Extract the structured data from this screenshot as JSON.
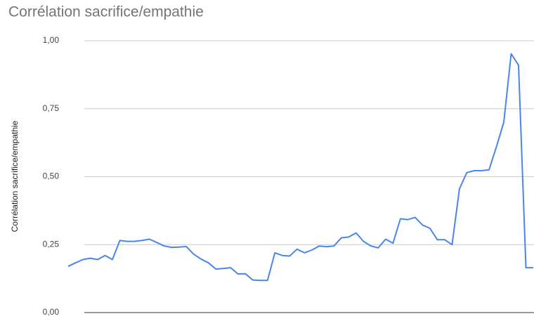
{
  "chart_data": {
    "type": "line",
    "title": "Corrélation sacrifice/empathie",
    "y_label": "Corrélation sacrifice/empathie",
    "series": [
      {
        "name": "Corrélation sacrifice/empathie",
        "color": "#4a86e8",
        "values": [
          0.17,
          0.183,
          0.195,
          0.2,
          0.195,
          0.21,
          0.195,
          0.265,
          0.262,
          0.262,
          0.265,
          0.27,
          0.258,
          0.245,
          0.24,
          0.241,
          0.243,
          0.215,
          0.197,
          0.183,
          0.16,
          0.162,
          0.165,
          0.142,
          0.143,
          0.12,
          0.118,
          0.118,
          0.22,
          0.21,
          0.208,
          0.233,
          0.22,
          0.23,
          0.245,
          0.242,
          0.245,
          0.275,
          0.278,
          0.293,
          0.262,
          0.245,
          0.238,
          0.27,
          0.255,
          0.345,
          0.342,
          0.35,
          0.322,
          0.31,
          0.268,
          0.268,
          0.25,
          0.455,
          0.515,
          0.522,
          0.522,
          0.525,
          0.61,
          0.7,
          0.952,
          0.91,
          0.165,
          0.165
        ]
      }
    ],
    "ylim": [
      0,
      1
    ],
    "yticks": [
      {
        "value": 0,
        "label": "0,00"
      },
      {
        "value": 0.25,
        "label": "0,25"
      },
      {
        "value": 0.5,
        "label": "0,50"
      },
      {
        "value": 0.75,
        "label": "0,75"
      },
      {
        "value": 1,
        "label": "1,00"
      }
    ],
    "grid": true
  }
}
